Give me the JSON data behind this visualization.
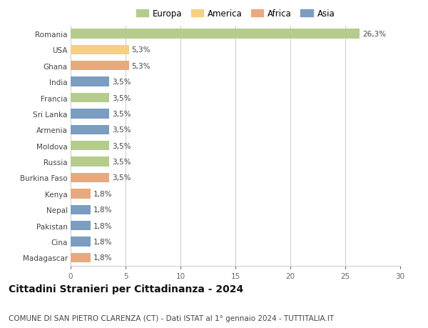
{
  "countries": [
    "Romania",
    "USA",
    "Ghana",
    "India",
    "Francia",
    "Sri Lanka",
    "Armenia",
    "Moldova",
    "Russia",
    "Burkina Faso",
    "Kenya",
    "Nepal",
    "Pakistan",
    "Cina",
    "Madagascar"
  ],
  "values": [
    26.3,
    5.3,
    5.3,
    3.5,
    3.5,
    3.5,
    3.5,
    3.5,
    3.5,
    3.5,
    1.8,
    1.8,
    1.8,
    1.8,
    1.8
  ],
  "labels": [
    "26,3%",
    "5,3%",
    "5,3%",
    "3,5%",
    "3,5%",
    "3,5%",
    "3,5%",
    "3,5%",
    "3,5%",
    "3,5%",
    "1,8%",
    "1,8%",
    "1,8%",
    "1,8%",
    "1,8%"
  ],
  "continents": [
    "Europa",
    "America",
    "Africa",
    "Asia",
    "Europa",
    "Asia",
    "Asia",
    "Europa",
    "Europa",
    "Africa",
    "Africa",
    "Asia",
    "Asia",
    "Asia",
    "Africa"
  ],
  "colors": {
    "Europa": "#b5cc8e",
    "America": "#f5d080",
    "Africa": "#e8a97e",
    "Asia": "#7b9dc0"
  },
  "legend_order": [
    "Europa",
    "America",
    "Africa",
    "Asia"
  ],
  "xlim": [
    0,
    30
  ],
  "xticks": [
    0,
    5,
    10,
    15,
    20,
    25,
    30
  ],
  "title": "Cittadini Stranieri per Cittadinanza - 2024",
  "subtitle": "COMUNE DI SAN PIETRO CLARENZA (CT) - Dati ISTAT al 1° gennaio 2024 - TUTTITALIA.IT",
  "background_color": "#ffffff",
  "grid_color": "#cccccc",
  "bar_height": 0.6,
  "label_fontsize": 7.5,
  "tick_fontsize": 7.5,
  "title_fontsize": 10,
  "subtitle_fontsize": 7.5
}
